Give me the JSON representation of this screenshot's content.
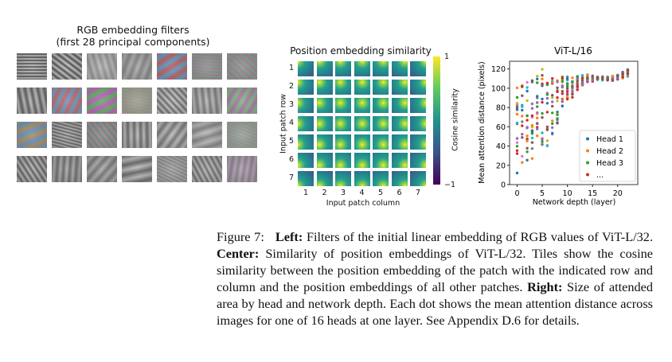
{
  "left_panel": {
    "title_line1": "RGB embedding filters",
    "title_line2": "(first 28 principal components)"
  },
  "center_panel": {
    "title": "Position embedding similarity",
    "ylabel": "Input patch row",
    "xlabel": "Input patch column",
    "row_ticks": [
      "1",
      "2",
      "3",
      "4",
      "5",
      "6",
      "7"
    ],
    "col_ticks": [
      "1",
      "2",
      "3",
      "4",
      "5",
      "6",
      "7"
    ],
    "colorbar_label": "Cosine similarity",
    "colorbar_max": "1",
    "colorbar_min": "−1"
  },
  "chart_data": {
    "type": "scatter",
    "title": "ViT-L/16",
    "xlabel": "Network depth (layer)",
    "ylabel": "Mean attention distance (pixels)",
    "xlim": [
      -1.5,
      24
    ],
    "ylim": [
      0,
      128
    ],
    "xticks": [
      "0",
      "5",
      "10",
      "15",
      "20"
    ],
    "yticks": [
      "0",
      "20",
      "40",
      "60",
      "80",
      "100",
      "120"
    ],
    "legend": [
      "Head 1",
      "Head 2",
      "Head 3",
      "..."
    ],
    "legend_extra": "...",
    "legend_location": "lower right",
    "series_colors": [
      "#1f77b4",
      "#ff7f0e",
      "#2ca02c",
      "#d62728",
      "#9467bd",
      "#8c564b",
      "#e377c2",
      "#7f7f7f",
      "#bcbd22",
      "#17becf",
      "#1f77b4",
      "#ff7f0e",
      "#2ca02c",
      "#d62728",
      "#9467bd",
      "#8c564b"
    ],
    "layer_ranges": [
      [
        12,
        108
      ],
      [
        18,
        110
      ],
      [
        20,
        112
      ],
      [
        22,
        115
      ],
      [
        28,
        118
      ],
      [
        35,
        120
      ],
      [
        40,
        112
      ],
      [
        52,
        112
      ],
      [
        62,
        112
      ],
      [
        72,
        112
      ],
      [
        85,
        112
      ],
      [
        90,
        112
      ],
      [
        98,
        113
      ],
      [
        103,
        114
      ],
      [
        106,
        114
      ],
      [
        107,
        113
      ],
      [
        107,
        112
      ],
      [
        108,
        112
      ],
      [
        108,
        112
      ],
      [
        108,
        113
      ],
      [
        109,
        114
      ],
      [
        110,
        117
      ],
      [
        112,
        120
      ]
    ]
  },
  "caption": {
    "figure_label": "Figure 7:",
    "left_bold": "Left:",
    "left_text": "Filters of the initial linear embedding of RGB values of ViT-L/32.",
    "center_bold": "Center:",
    "center_text": "Similarity of position embeddings of ViT-L/32. Tiles show the cosine similarity between the position embedding of the patch with the indicated row and column and the position embeddings of all other patches.",
    "right_bold": "Right:",
    "right_text": "Size of attended area by head and network depth. Each dot shows the mean attention distance across images for one of 16 heads at one layer. See Appendix D.6 for details."
  }
}
